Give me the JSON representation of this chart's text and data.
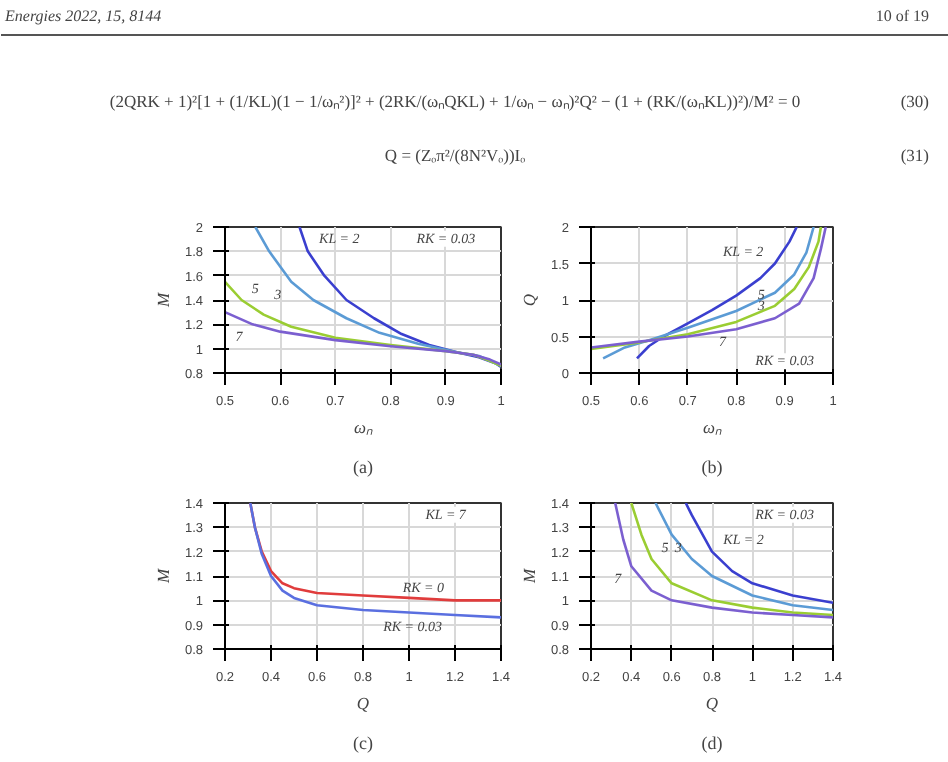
{
  "chart_data": [
    {
      "type": "other",
      "annotations": [
        "Energies 2022, 15, 8144",
        "10 of 19",
        "(2QRK + 1)²[1 + (1/KL)(1 − 1/ωₙ²)]² + (2RK/(ωₙQKL) + 1/ωₙ − ωₙ)²Q² − (1 + (RK/(ωₙKL))²)/M² = 0",
        "(30)",
        "Q = (Zₒπ²/(8N²Vₒ))Iₒ",
        "(31)"
      ]
    },
    {
      "type": "line",
      "xlabel": "ωₙ",
      "ylabel": "M",
      "xlim": [
        0.5,
        1.0
      ],
      "ylim": [
        0.8,
        2.0
      ],
      "xticks": [
        0.5,
        0.6,
        0.7,
        0.8,
        0.9,
        1.0
      ],
      "yticks": [
        0.8,
        1.0,
        1.2,
        1.4,
        1.6,
        1.8,
        2.0
      ],
      "grid": true,
      "series": [
        {
          "color": "#3a3fcf",
          "x": [
            0.635,
            0.65,
            0.68,
            0.72,
            0.77,
            0.82,
            0.87,
            0.92,
            0.96,
            0.99,
            1.0
          ],
          "values": [
            2.0,
            1.8,
            1.6,
            1.4,
            1.25,
            1.12,
            1.03,
            0.97,
            0.93,
            0.88,
            0.85
          ]
        },
        {
          "color": "#5b9bd5",
          "x": [
            0.555,
            0.58,
            0.62,
            0.66,
            0.72,
            0.78,
            0.85,
            0.92,
            0.96,
            1.0
          ],
          "values": [
            2.0,
            1.8,
            1.55,
            1.4,
            1.25,
            1.13,
            1.04,
            0.97,
            0.94,
            0.86
          ]
        },
        {
          "color": "#9acd32",
          "x": [
            0.5,
            0.53,
            0.57,
            0.62,
            0.7,
            0.8,
            0.9,
            0.95,
            0.98,
            1.0
          ],
          "values": [
            1.55,
            1.4,
            1.28,
            1.18,
            1.09,
            1.03,
            0.98,
            0.95,
            0.9,
            0.86
          ]
        },
        {
          "color": "#7b5fd0",
          "x": [
            0.5,
            0.55,
            0.6,
            0.7,
            0.8,
            0.9,
            0.95,
            0.98,
            1.0
          ],
          "values": [
            1.3,
            1.2,
            1.14,
            1.07,
            1.02,
            0.98,
            0.95,
            0.91,
            0.87
          ]
        }
      ],
      "annotations": [
        {
          "text": "KL = 2",
          "x": 0.65,
          "y": 1.8
        },
        {
          "text": "3",
          "x": 0.62,
          "y": 1.55
        },
        {
          "text": "5",
          "x": 0.53,
          "y": 1.4
        },
        {
          "text": "7",
          "x": 0.55,
          "y": 1.2
        },
        "RK = 0.03",
        "(a)"
      ]
    },
    {
      "type": "line",
      "xlabel": "ωₙ",
      "ylabel": "Q",
      "xlim": [
        0.5,
        1.0
      ],
      "ylim": [
        0.0,
        2.0
      ],
      "xticks": [
        0.5,
        0.6,
        0.7,
        0.8,
        0.9,
        1.0
      ],
      "yticks": [
        0.0,
        0.5,
        1.0,
        1.5,
        2.0
      ],
      "grid": true,
      "series": [
        {
          "color": "#3a3fcf",
          "x": [
            0.595,
            0.62,
            0.65,
            0.7,
            0.75,
            0.8,
            0.85,
            0.88,
            0.91,
            0.925
          ],
          "values": [
            0.2,
            0.37,
            0.5,
            0.68,
            0.86,
            1.06,
            1.3,
            1.5,
            1.8,
            2.0
          ]
        },
        {
          "color": "#5b9bd5",
          "x": [
            0.525,
            0.57,
            0.62,
            0.7,
            0.8,
            0.88,
            0.92,
            0.945,
            0.96
          ],
          "values": [
            0.2,
            0.35,
            0.45,
            0.62,
            0.85,
            1.1,
            1.35,
            1.65,
            2.0
          ]
        },
        {
          "color": "#9acd32",
          "x": [
            0.5,
            0.6,
            0.7,
            0.8,
            0.88,
            0.92,
            0.95,
            0.97,
            0.975
          ],
          "values": [
            0.33,
            0.42,
            0.53,
            0.7,
            0.92,
            1.15,
            1.45,
            1.8,
            2.0
          ]
        },
        {
          "color": "#7b5fd0",
          "x": [
            0.5,
            0.6,
            0.7,
            0.8,
            0.88,
            0.93,
            0.96,
            0.975,
            0.985
          ],
          "values": [
            0.35,
            0.43,
            0.5,
            0.6,
            0.75,
            0.95,
            1.3,
            1.7,
            2.0
          ]
        }
      ],
      "annotations": [
        {
          "text": "KL = 2",
          "x": 0.88,
          "y": 1.5
        },
        {
          "text": "3",
          "x": 0.88,
          "y": 1.1
        },
        {
          "text": "5",
          "x": 0.88,
          "y": 0.92
        },
        {
          "text": "7",
          "x": 0.8,
          "y": 0.6
        },
        "RK = 0.03",
        "(b)"
      ]
    },
    {
      "type": "line",
      "xlabel": "Q",
      "ylabel": "M",
      "xlim": [
        0.2,
        1.4
      ],
      "ylim": [
        0.8,
        1.4
      ],
      "xticks": [
        0.2,
        0.4,
        0.6,
        0.8,
        1.0,
        1.2,
        1.4
      ],
      "yticks": [
        0.8,
        0.9,
        1.0,
        1.1,
        1.2,
        1.3,
        1.4
      ],
      "grid": true,
      "series": [
        {
          "color": "#e03c3c",
          "x": [
            0.31,
            0.33,
            0.36,
            0.4,
            0.45,
            0.5,
            0.6,
            0.8,
            1.0,
            1.2,
            1.4
          ],
          "values": [
            1.4,
            1.3,
            1.2,
            1.12,
            1.07,
            1.05,
            1.03,
            1.02,
            1.01,
            1.0,
            1.0
          ]
        },
        {
          "color": "#5a6fe0",
          "x": [
            0.31,
            0.33,
            0.36,
            0.4,
            0.45,
            0.5,
            0.6,
            0.8,
            1.0,
            1.2,
            1.4
          ],
          "values": [
            1.4,
            1.3,
            1.19,
            1.1,
            1.04,
            1.01,
            0.98,
            0.96,
            0.95,
            0.94,
            0.93
          ]
        }
      ],
      "annotations": [
        {
          "text": "RK = 0",
          "x": 1.2,
          "y": 1.0
        },
        {
          "text": "RK = 0.03",
          "x": 1.2,
          "y": 0.94
        },
        "KL = 7",
        "(c)"
      ]
    },
    {
      "type": "line",
      "xlabel": "Q",
      "ylabel": "M",
      "xlim": [
        0.2,
        1.4
      ],
      "ylim": [
        0.8,
        1.4
      ],
      "xticks": [
        0.2,
        0.4,
        0.6,
        0.8,
        1.0,
        1.2,
        1.4
      ],
      "yticks": [
        0.8,
        0.9,
        1.0,
        1.1,
        1.2,
        1.3,
        1.4
      ],
      "grid": true,
      "series": [
        {
          "color": "#3a3fcf",
          "x": [
            0.67,
            0.7,
            0.8,
            0.9,
            1.0,
            1.2,
            1.4
          ],
          "values": [
            1.4,
            1.35,
            1.2,
            1.12,
            1.07,
            1.02,
            0.99
          ]
        },
        {
          "color": "#5b9bd5",
          "x": [
            0.52,
            0.6,
            0.7,
            0.8,
            1.0,
            1.2,
            1.4
          ],
          "values": [
            1.4,
            1.27,
            1.17,
            1.1,
            1.02,
            0.98,
            0.96
          ]
        },
        {
          "color": "#9acd32",
          "x": [
            0.4,
            0.45,
            0.5,
            0.6,
            0.8,
            1.0,
            1.2,
            1.4
          ],
          "values": [
            1.4,
            1.27,
            1.17,
            1.07,
            1.0,
            0.97,
            0.95,
            0.94
          ]
        },
        {
          "color": "#7b5fd0",
          "x": [
            0.32,
            0.36,
            0.4,
            0.5,
            0.6,
            0.8,
            1.0,
            1.2,
            1.4
          ],
          "values": [
            1.4,
            1.25,
            1.14,
            1.04,
            1.0,
            0.97,
            0.95,
            0.94,
            0.93
          ]
        }
      ],
      "annotations": [
        {
          "text": "KL = 2",
          "x": 0.8,
          "y": 1.2
        },
        "RK = 0.03",
        {
          "text": "3",
          "x": 0.7,
          "y": 1.17
        },
        {
          "text": "5",
          "x": 0.5,
          "y": 1.17
        },
        {
          "text": "7",
          "x": 0.4,
          "y": 1.14
        },
        "(d)"
      ]
    }
  ]
}
